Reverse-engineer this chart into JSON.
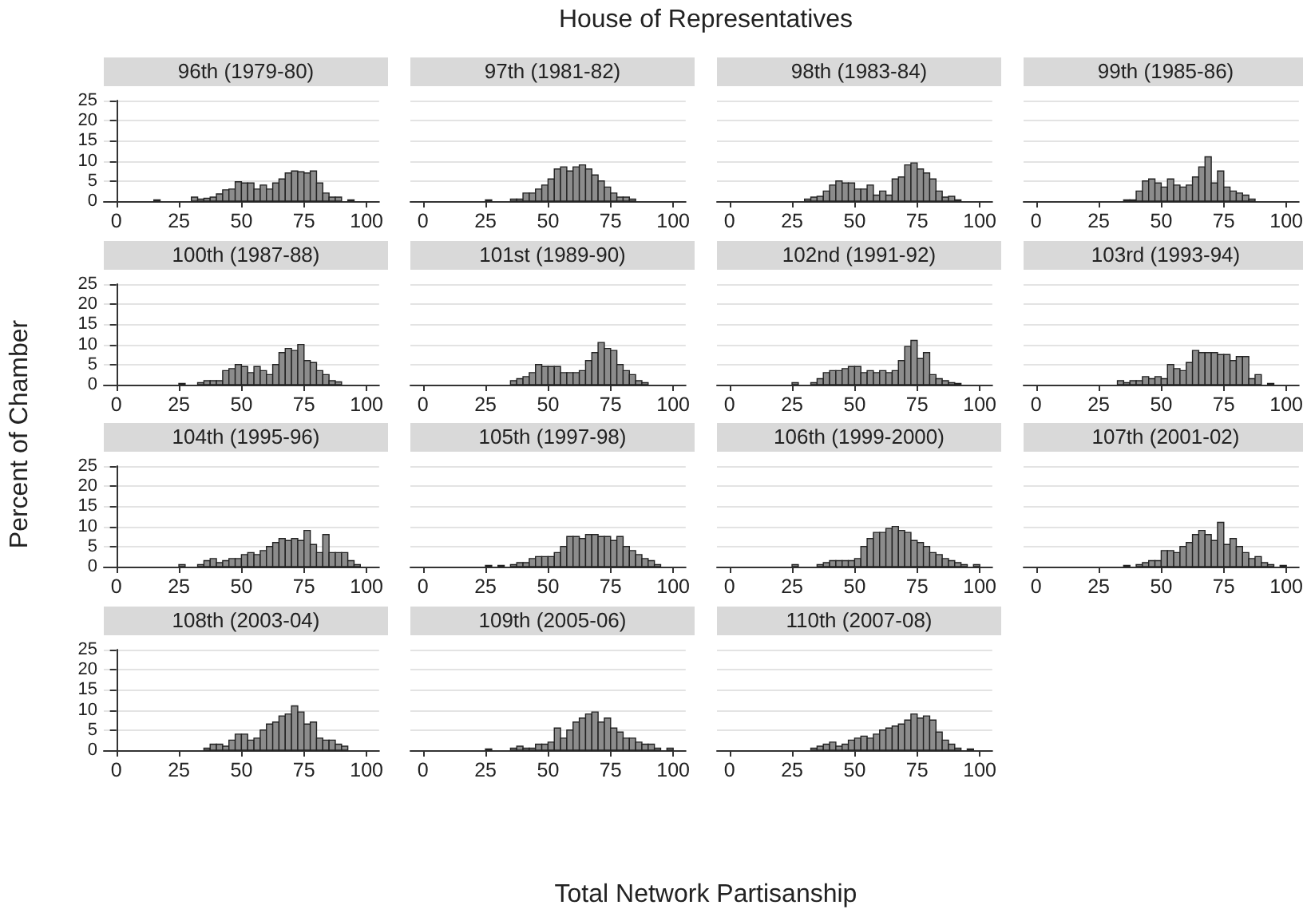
{
  "chart_data": [
    {
      "type": "histogram",
      "title": "96th (1979-80)",
      "bins": [
        0,
        2.5,
        5,
        7.5,
        10,
        12.5,
        15,
        17.5,
        20,
        22.5,
        25,
        27.5,
        30,
        32.5,
        35,
        37.5,
        40,
        42.5,
        45,
        47.5,
        50,
        52.5,
        55,
        57.5,
        60,
        62.5,
        65,
        67.5,
        70,
        72.5,
        75,
        77.5,
        80,
        82.5,
        85,
        87.5,
        90,
        92.5,
        95,
        97.5,
        100
      ],
      "values": [
        0,
        0,
        0,
        0,
        0,
        0,
        0.3,
        0,
        0,
        0,
        0,
        0,
        1,
        0.5,
        0.7,
        1,
        1.8,
        2.8,
        3,
        4.8,
        4.5,
        4.5,
        3,
        4,
        3,
        4.5,
        5.5,
        7,
        7.5,
        7.3,
        7,
        7.5,
        4.5,
        2,
        1,
        1,
        0,
        0.3,
        0,
        0
      ],
      "color": "#8c8c8c",
      "xlim": [
        -5,
        105
      ],
      "ylim": [
        0,
        25
      ],
      "xticks": [
        0,
        25,
        50,
        75,
        100
      ],
      "yticks": [
        0,
        5,
        10,
        15,
        20,
        25
      ],
      "grid": "y"
    },
    {
      "type": "histogram",
      "title": "97th (1981-82)",
      "annotations": [
        "House of Representatives"
      ],
      "bins": [
        0,
        2.5,
        5,
        7.5,
        10,
        12.5,
        15,
        17.5,
        20,
        22.5,
        25,
        27.5,
        30,
        32.5,
        35,
        37.5,
        40,
        42.5,
        45,
        47.5,
        50,
        52.5,
        55,
        57.5,
        60,
        62.5,
        65,
        67.5,
        70,
        72.5,
        75,
        77.5,
        80,
        82.5,
        85,
        87.5,
        90,
        92.5,
        95,
        97.5,
        100
      ],
      "values": [
        0,
        0,
        0,
        0,
        0,
        0,
        0,
        0,
        0,
        0,
        0.3,
        0,
        0,
        0,
        0.5,
        0.5,
        2,
        2,
        3,
        4,
        5.5,
        8,
        8.5,
        7.5,
        8.5,
        9,
        8,
        6.5,
        5,
        3.5,
        2,
        1,
        1,
        0.5,
        0,
        0,
        0,
        0,
        0,
        0
      ],
      "color": "#8c8c8c",
      "xlim": [
        -5,
        105
      ],
      "ylim": [
        0,
        25
      ],
      "xticks": [
        0,
        25,
        50,
        75,
        100
      ],
      "yticks": [
        0,
        5,
        10,
        15,
        20,
        25
      ],
      "grid": "y",
      "tick_labels": "x"
    },
    {
      "type": "histogram",
      "title": "98th (1983-84)",
      "bins": [
        0,
        2.5,
        5,
        7.5,
        10,
        12.5,
        15,
        17.5,
        20,
        22.5,
        25,
        27.5,
        30,
        32.5,
        35,
        37.5,
        40,
        42.5,
        45,
        47.5,
        50,
        52.5,
        55,
        57.5,
        60,
        62.5,
        65,
        67.5,
        70,
        72.5,
        75,
        77.5,
        80,
        82.5,
        85,
        87.5,
        90,
        92.5,
        95,
        97.5,
        100
      ],
      "values": [
        0,
        0,
        0,
        0,
        0,
        0,
        0,
        0,
        0,
        0,
        0,
        0,
        0.5,
        1,
        1.2,
        2.5,
        4,
        5,
        4.5,
        4.5,
        3,
        3,
        4,
        1.5,
        2.5,
        1.5,
        5.5,
        6,
        9,
        9.5,
        8,
        7,
        5.5,
        2.5,
        1,
        1.2,
        0.3,
        0,
        0,
        0
      ],
      "color": "#8c8c8c",
      "xlim": [
        -5,
        105
      ],
      "ylim": [
        0,
        25
      ],
      "xticks": [
        0,
        25,
        50,
        75,
        100
      ],
      "yticks": [
        0,
        5,
        10,
        15,
        20,
        25
      ],
      "grid": "y",
      "tick_labels": "x"
    },
    {
      "type": "histogram",
      "title": "99th (1985-86)",
      "bins": [
        0,
        2.5,
        5,
        7.5,
        10,
        12.5,
        15,
        17.5,
        20,
        22.5,
        25,
        27.5,
        30,
        32.5,
        35,
        37.5,
        40,
        42.5,
        45,
        47.5,
        50,
        52.5,
        55,
        57.5,
        60,
        62.5,
        65,
        67.5,
        70,
        72.5,
        75,
        77.5,
        80,
        82.5,
        85,
        87.5,
        90,
        92.5,
        95,
        97.5,
        100
      ],
      "values": [
        0,
        0,
        0,
        0,
        0,
        0,
        0,
        0,
        0,
        0,
        0,
        0,
        0,
        0,
        0.3,
        0.3,
        2.5,
        5,
        5.5,
        4.5,
        3.5,
        5.5,
        4,
        3.5,
        4,
        6,
        8.5,
        11,
        4.5,
        7.5,
        3.5,
        2.5,
        2,
        1.5,
        0.5,
        0,
        0,
        0,
        0,
        0
      ],
      "color": "#8c8c8c",
      "xlim": [
        -5,
        105
      ],
      "ylim": [
        0,
        25
      ],
      "xticks": [
        0,
        25,
        50,
        75,
        100
      ],
      "yticks": [
        0,
        5,
        10,
        15,
        20,
        25
      ],
      "grid": "y",
      "tick_labels": "x"
    },
    {
      "type": "histogram",
      "title": "100th (1987-88)",
      "bins": [
        0,
        2.5,
        5,
        7.5,
        10,
        12.5,
        15,
        17.5,
        20,
        22.5,
        25,
        27.5,
        30,
        32.5,
        35,
        37.5,
        40,
        42.5,
        45,
        47.5,
        50,
        52.5,
        55,
        57.5,
        60,
        62.5,
        65,
        67.5,
        70,
        72.5,
        75,
        77.5,
        80,
        82.5,
        85,
        87.5,
        90,
        92.5,
        95,
        97.5,
        100
      ],
      "values": [
        0,
        0,
        0,
        0,
        0,
        0,
        0,
        0,
        0,
        0,
        0.3,
        0,
        0,
        0.5,
        1,
        1,
        1,
        3.5,
        4,
        5,
        4.5,
        3,
        4.5,
        3.5,
        2.5,
        5,
        8,
        9,
        8.5,
        10,
        6,
        5.5,
        3.5,
        2.5,
        1,
        0.7,
        0,
        0,
        0,
        0
      ],
      "color": "#8c8c8c",
      "xlim": [
        -5,
        105
      ],
      "ylim": [
        0,
        25
      ],
      "xticks": [
        0,
        25,
        50,
        75,
        100
      ],
      "yticks": [
        0,
        5,
        10,
        15,
        20,
        25
      ],
      "grid": "y"
    },
    {
      "type": "histogram",
      "title": "101st (1989-90)",
      "bins": [
        0,
        2.5,
        5,
        7.5,
        10,
        12.5,
        15,
        17.5,
        20,
        22.5,
        25,
        27.5,
        30,
        32.5,
        35,
        37.5,
        40,
        42.5,
        45,
        47.5,
        50,
        52.5,
        55,
        57.5,
        60,
        62.5,
        65,
        67.5,
        70,
        72.5,
        75,
        77.5,
        80,
        82.5,
        85,
        87.5,
        90,
        92.5,
        95,
        97.5,
        100
      ],
      "values": [
        0,
        0,
        0,
        0,
        0,
        0,
        0,
        0,
        0,
        0,
        0,
        0,
        0,
        0,
        1,
        1.5,
        2,
        3,
        5,
        4.5,
        4.5,
        4.5,
        3,
        3,
        3,
        3.5,
        6,
        8,
        10.5,
        9,
        8.5,
        5,
        3.5,
        2.5,
        1,
        0.5,
        0,
        0,
        0,
        0
      ],
      "color": "#8c8c8c",
      "xlim": [
        -5,
        105
      ],
      "ylim": [
        0,
        25
      ],
      "xticks": [
        0,
        25,
        50,
        75,
        100
      ],
      "yticks": [
        0,
        5,
        10,
        15,
        20,
        25
      ],
      "grid": "y",
      "tick_labels": "x"
    },
    {
      "type": "histogram",
      "title": "102nd (1991-92)",
      "bins": [
        0,
        2.5,
        5,
        7.5,
        10,
        12.5,
        15,
        17.5,
        20,
        22.5,
        25,
        27.5,
        30,
        32.5,
        35,
        37.5,
        40,
        42.5,
        45,
        47.5,
        50,
        52.5,
        55,
        57.5,
        60,
        62.5,
        65,
        67.5,
        70,
        72.5,
        75,
        77.5,
        80,
        82.5,
        85,
        87.5,
        90,
        92.5,
        95,
        97.5,
        100
      ],
      "values": [
        0,
        0,
        0,
        0,
        0,
        0,
        0,
        0,
        0,
        0,
        0.5,
        0,
        0,
        0.5,
        1.5,
        3,
        3.5,
        3.5,
        4,
        4.5,
        4.5,
        3,
        3.5,
        3,
        3.5,
        3,
        3.5,
        6,
        9.5,
        11,
        6.5,
        8,
        2.5,
        1.5,
        1,
        0.5,
        0.3,
        0,
        0,
        0
      ],
      "color": "#8c8c8c",
      "xlim": [
        -5,
        105
      ],
      "ylim": [
        0,
        25
      ],
      "xticks": [
        0,
        25,
        50,
        75,
        100
      ],
      "yticks": [
        0,
        5,
        10,
        15,
        20,
        25
      ],
      "grid": "y",
      "tick_labels": "x"
    },
    {
      "type": "histogram",
      "title": "103rd (1993-94)",
      "bins": [
        0,
        2.5,
        5,
        7.5,
        10,
        12.5,
        15,
        17.5,
        20,
        22.5,
        25,
        27.5,
        30,
        32.5,
        35,
        37.5,
        40,
        42.5,
        45,
        47.5,
        50,
        52.5,
        55,
        57.5,
        60,
        62.5,
        65,
        67.5,
        70,
        72.5,
        75,
        77.5,
        80,
        82.5,
        85,
        87.5,
        90,
        92.5,
        95,
        97.5,
        100
      ],
      "values": [
        0,
        0,
        0,
        0,
        0,
        0,
        0,
        0,
        0,
        0,
        0,
        0,
        0,
        1,
        0.5,
        1,
        1,
        2,
        1.5,
        2,
        1.5,
        5,
        4,
        3.5,
        5.5,
        8.5,
        8,
        8,
        8,
        7.5,
        7.5,
        6,
        7,
        7,
        1.5,
        2.5,
        0,
        0.3,
        0,
        0
      ],
      "color": "#8c8c8c",
      "xlim": [
        -5,
        105
      ],
      "ylim": [
        0,
        25
      ],
      "xticks": [
        0,
        25,
        50,
        75,
        100
      ],
      "yticks": [
        0,
        5,
        10,
        15,
        20,
        25
      ],
      "grid": "y",
      "tick_labels": "x"
    },
    {
      "type": "histogram",
      "title": "104th (1995-96)",
      "ylabel": "Percent of Chamber",
      "bins": [
        0,
        2.5,
        5,
        7.5,
        10,
        12.5,
        15,
        17.5,
        20,
        22.5,
        25,
        27.5,
        30,
        32.5,
        35,
        37.5,
        40,
        42.5,
        45,
        47.5,
        50,
        52.5,
        55,
        57.5,
        60,
        62.5,
        65,
        67.5,
        70,
        72.5,
        75,
        77.5,
        80,
        82.5,
        85,
        87.5,
        90,
        92.5,
        95,
        97.5,
        100
      ],
      "values": [
        0,
        0,
        0,
        0,
        0,
        0,
        0,
        0,
        0,
        0,
        0.5,
        0,
        0,
        0.5,
        1.5,
        2,
        1,
        1.5,
        2,
        2,
        3,
        3.5,
        3,
        4,
        5,
        6,
        7,
        6.5,
        7,
        6.5,
        9,
        5.5,
        3.5,
        8,
        3.5,
        3.5,
        3.5,
        1.5,
        0.5,
        0
      ],
      "color": "#8c8c8c",
      "xlim": [
        -5,
        105
      ],
      "ylim": [
        0,
        25
      ],
      "xticks": [
        0,
        25,
        50,
        75,
        100
      ],
      "yticks": [
        0,
        5,
        10,
        15,
        20,
        25
      ],
      "grid": "y"
    },
    {
      "type": "histogram",
      "title": "105th (1997-98)",
      "bins": [
        0,
        2.5,
        5,
        7.5,
        10,
        12.5,
        15,
        17.5,
        20,
        22.5,
        25,
        27.5,
        30,
        32.5,
        35,
        37.5,
        40,
        42.5,
        45,
        47.5,
        50,
        52.5,
        55,
        57.5,
        60,
        62.5,
        65,
        67.5,
        70,
        72.5,
        75,
        77.5,
        80,
        82.5,
        85,
        87.5,
        90,
        92.5,
        95,
        97.5,
        100
      ],
      "values": [
        0,
        0,
        0,
        0,
        0,
        0,
        0,
        0,
        0,
        0,
        0.3,
        0,
        0.3,
        0,
        0.5,
        1,
        1,
        2,
        2.5,
        2.5,
        2.5,
        3.5,
        5,
        7.5,
        7.5,
        7,
        8,
        8,
        7.5,
        7.5,
        6.5,
        7.5,
        5,
        4,
        3,
        2,
        1.5,
        0.5,
        0,
        0
      ],
      "color": "#8c8c8c",
      "xlim": [
        -5,
        105
      ],
      "ylim": [
        0,
        25
      ],
      "xticks": [
        0,
        25,
        50,
        75,
        100
      ],
      "yticks": [
        0,
        5,
        10,
        15,
        20,
        25
      ],
      "grid": "y",
      "tick_labels": "x"
    },
    {
      "type": "histogram",
      "title": "106th (1999-2000)",
      "bins": [
        0,
        2.5,
        5,
        7.5,
        10,
        12.5,
        15,
        17.5,
        20,
        22.5,
        25,
        27.5,
        30,
        32.5,
        35,
        37.5,
        40,
        42.5,
        45,
        47.5,
        50,
        52.5,
        55,
        57.5,
        60,
        62.5,
        65,
        67.5,
        70,
        72.5,
        75,
        77.5,
        80,
        82.5,
        85,
        87.5,
        90,
        92.5,
        95,
        97.5,
        100
      ],
      "values": [
        0,
        0,
        0,
        0,
        0,
        0,
        0,
        0,
        0,
        0,
        0.5,
        0,
        0,
        0,
        0.5,
        1,
        1.5,
        1.5,
        1.5,
        1.5,
        2,
        5,
        7,
        8.5,
        8.5,
        9.5,
        10,
        9,
        8.5,
        6.5,
        6,
        5,
        3.5,
        3,
        2,
        1.5,
        1,
        0.5,
        0,
        0.5
      ],
      "color": "#8c8c8c",
      "xlim": [
        -5,
        105
      ],
      "ylim": [
        0,
        25
      ],
      "xticks": [
        0,
        25,
        50,
        75,
        100
      ],
      "yticks": [
        0,
        5,
        10,
        15,
        20,
        25
      ],
      "grid": "y",
      "tick_labels": "x"
    },
    {
      "type": "histogram",
      "title": "107th (2001-02)",
      "bins": [
        0,
        2.5,
        5,
        7.5,
        10,
        12.5,
        15,
        17.5,
        20,
        22.5,
        25,
        27.5,
        30,
        32.5,
        35,
        37.5,
        40,
        42.5,
        45,
        47.5,
        50,
        52.5,
        55,
        57.5,
        60,
        62.5,
        65,
        67.5,
        70,
        72.5,
        75,
        77.5,
        80,
        82.5,
        85,
        87.5,
        90,
        92.5,
        95,
        97.5,
        100
      ],
      "values": [
        0,
        0,
        0,
        0,
        0,
        0,
        0,
        0,
        0,
        0,
        0,
        0,
        0,
        0,
        0.3,
        0,
        0.5,
        1,
        1.5,
        1.5,
        4,
        4,
        3.5,
        5,
        6,
        8,
        9,
        8,
        6.5,
        11,
        5.5,
        7,
        5,
        3.5,
        2,
        2.5,
        1,
        0.5,
        0,
        0.3
      ],
      "color": "#8c8c8c",
      "xlim": [
        -5,
        105
      ],
      "ylim": [
        0,
        25
      ],
      "xticks": [
        0,
        25,
        50,
        75,
        100
      ],
      "yticks": [
        0,
        5,
        10,
        15,
        20,
        25
      ],
      "grid": "y",
      "tick_labels": "x"
    },
    {
      "type": "histogram",
      "title": "108th (2003-04)",
      "bins": [
        0,
        2.5,
        5,
        7.5,
        10,
        12.5,
        15,
        17.5,
        20,
        22.5,
        25,
        27.5,
        30,
        32.5,
        35,
        37.5,
        40,
        42.5,
        45,
        47.5,
        50,
        52.5,
        55,
        57.5,
        60,
        62.5,
        65,
        67.5,
        70,
        72.5,
        75,
        77.5,
        80,
        82.5,
        85,
        87.5,
        90,
        92.5,
        95,
        97.5,
        100
      ],
      "values": [
        0,
        0,
        0,
        0,
        0,
        0,
        0,
        0,
        0,
        0,
        0,
        0,
        0,
        0,
        0.5,
        1.5,
        1.5,
        1,
        2.5,
        4,
        4,
        2.5,
        3,
        5,
        6.5,
        7,
        8.5,
        9,
        11,
        9.5,
        6.5,
        7,
        3,
        2.5,
        2.5,
        1.5,
        1,
        0,
        0,
        0
      ],
      "color": "#8c8c8c",
      "xlim": [
        -5,
        105
      ],
      "ylim": [
        0,
        25
      ],
      "xticks": [
        0,
        25,
        50,
        75,
        100
      ],
      "yticks": [
        0,
        5,
        10,
        15,
        20,
        25
      ],
      "grid": "y"
    },
    {
      "type": "histogram",
      "title": "109th (2005-06)",
      "xlabel": "Total Network Partisanship",
      "bins": [
        0,
        2.5,
        5,
        7.5,
        10,
        12.5,
        15,
        17.5,
        20,
        22.5,
        25,
        27.5,
        30,
        32.5,
        35,
        37.5,
        40,
        42.5,
        45,
        47.5,
        50,
        52.5,
        55,
        57.5,
        60,
        62.5,
        65,
        67.5,
        70,
        72.5,
        75,
        77.5,
        80,
        82.5,
        85,
        87.5,
        90,
        92.5,
        95,
        97.5,
        100
      ],
      "values": [
        0,
        0,
        0,
        0,
        0,
        0,
        0,
        0,
        0,
        0,
        0.3,
        0,
        0,
        0,
        0.5,
        1,
        0.5,
        0.5,
        1.5,
        1.5,
        2,
        5.5,
        3,
        5,
        7,
        8,
        9,
        9.5,
        7,
        8,
        5.5,
        4.5,
        3,
        3,
        2,
        1.5,
        1.5,
        0.5,
        0,
        0.5
      ],
      "color": "#8c8c8c",
      "xlim": [
        -5,
        105
      ],
      "ylim": [
        0,
        25
      ],
      "xticks": [
        0,
        25,
        50,
        75,
        100
      ],
      "yticks": [
        0,
        5,
        10,
        15,
        20,
        25
      ],
      "grid": "y",
      "tick_labels": "x"
    },
    {
      "type": "histogram",
      "title": "110th (2007-08)",
      "bins": [
        0,
        2.5,
        5,
        7.5,
        10,
        12.5,
        15,
        17.5,
        20,
        22.5,
        25,
        27.5,
        30,
        32.5,
        35,
        37.5,
        40,
        42.5,
        45,
        47.5,
        50,
        52.5,
        55,
        57.5,
        60,
        62.5,
        65,
        67.5,
        70,
        72.5,
        75,
        77.5,
        80,
        82.5,
        85,
        87.5,
        90,
        92.5,
        95,
        97.5,
        100
      ],
      "values": [
        0,
        0,
        0,
        0,
        0,
        0,
        0,
        0,
        0,
        0,
        0,
        0,
        0,
        0.5,
        1,
        1.5,
        2,
        1,
        1.5,
        2.5,
        3,
        3.5,
        3,
        4,
        5,
        5.5,
        6,
        6.5,
        7.5,
        9,
        8,
        8.5,
        7.5,
        4.5,
        2.5,
        1.5,
        0.5,
        0,
        0.3,
        0
      ],
      "color": "#8c8c8c",
      "xlim": [
        -5,
        105
      ],
      "ylim": [
        0,
        25
      ],
      "xticks": [
        0,
        25,
        50,
        75,
        100
      ],
      "yticks": [
        0,
        5,
        10,
        15,
        20,
        25
      ],
      "grid": "y",
      "tick_labels": "x"
    }
  ]
}
